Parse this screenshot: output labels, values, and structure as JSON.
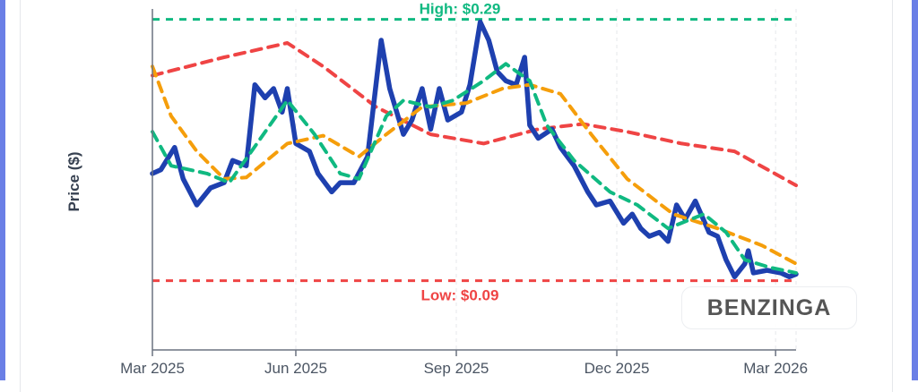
{
  "chart_data": {
    "type": "line",
    "title": "",
    "xlabel": "",
    "ylabel": "Price ($)",
    "x_units": "days since 2025-03-01",
    "xlim": [
      0,
      377
    ],
    "ylim": [
      0.037,
      0.298
    ],
    "x_ticks": [
      {
        "label": "Mar 2025",
        "day": 0
      },
      {
        "label": "Jun 2025",
        "day": 84
      },
      {
        "label": "Sep 2025",
        "day": 178
      },
      {
        "label": "Dec 2025",
        "day": 272
      },
      {
        "label": "Mar 2026",
        "day": 365
      }
    ],
    "grid": "vertical dashed",
    "reference_lines": [
      {
        "name": "high",
        "label": "High: $0.29",
        "value": 0.29,
        "color": "#10b981"
      },
      {
        "name": "low",
        "label": "Low: $0.09",
        "value": 0.09,
        "color": "#ef4444"
      }
    ],
    "series": [
      {
        "name": "price",
        "color": "#1e40af",
        "style": "solid",
        "x": [
          0,
          5,
          13,
          18,
          26,
          34,
          42,
          47,
          55,
          60,
          66,
          71,
          76,
          79,
          84,
          92,
          97,
          105,
          110,
          118,
          126,
          134,
          139,
          147,
          152,
          158,
          163,
          168,
          173,
          181,
          186,
          192,
          197,
          202,
          207,
          213,
          218,
          221,
          226,
          234,
          239,
          247,
          255,
          260,
          268,
          276,
          281,
          286,
          291,
          297,
          302,
          307,
          312,
          318,
          326,
          331,
          336,
          341,
          347,
          349,
          352,
          360,
          368,
          373,
          377
        ],
        "values": [
          0.172,
          0.175,
          0.192,
          0.168,
          0.148,
          0.161,
          0.165,
          0.182,
          0.178,
          0.24,
          0.23,
          0.237,
          0.219,
          0.237,
          0.195,
          0.189,
          0.172,
          0.158,
          0.165,
          0.165,
          0.185,
          0.274,
          0.237,
          0.202,
          0.213,
          0.237,
          0.206,
          0.237,
          0.213,
          0.219,
          0.24,
          0.288,
          0.274,
          0.25,
          0.243,
          0.24,
          0.261,
          0.209,
          0.199,
          0.206,
          0.192,
          0.178,
          0.158,
          0.148,
          0.151,
          0.134,
          0.141,
          0.13,
          0.124,
          0.127,
          0.12,
          0.148,
          0.137,
          0.151,
          0.127,
          0.124,
          0.106,
          0.093,
          0.103,
          0.113,
          0.096,
          0.098,
          0.096,
          0.093,
          0.095
        ]
      },
      {
        "name": "sma-short",
        "color": "#10b981",
        "style": "dashed",
        "x": [
          0,
          11,
          32,
          45,
          58,
          79,
          95,
          110,
          121,
          137,
          147,
          163,
          176,
          194,
          207,
          221,
          231,
          247,
          268,
          284,
          302,
          323,
          336,
          347,
          362,
          377
        ],
        "values": [
          0.204,
          0.178,
          0.172,
          0.165,
          0.189,
          0.228,
          0.202,
          0.172,
          0.168,
          0.216,
          0.228,
          0.223,
          0.228,
          0.243,
          0.256,
          0.243,
          0.209,
          0.182,
          0.158,
          0.148,
          0.13,
          0.141,
          0.127,
          0.106,
          0.1,
          0.096
        ]
      },
      {
        "name": "sma-medium",
        "color": "#f59e0b",
        "style": "dashed",
        "x": [
          0,
          11,
          26,
          42,
          55,
          79,
          100,
          121,
          137,
          158,
          184,
          205,
          221,
          239,
          257,
          278,
          305,
          331,
          357,
          377
        ],
        "values": [
          0.254,
          0.216,
          0.189,
          0.168,
          0.169,
          0.195,
          0.201,
          0.185,
          0.202,
          0.223,
          0.226,
          0.237,
          0.24,
          0.233,
          0.202,
          0.168,
          0.141,
          0.13,
          0.117,
          0.103
        ]
      },
      {
        "name": "sma-long",
        "color": "#ef4444",
        "style": "dashed",
        "x": [
          0,
          42,
          79,
          100,
          131,
          163,
          194,
          226,
          252,
          278,
          310,
          341,
          377
        ],
        "values": [
          0.247,
          0.261,
          0.272,
          0.254,
          0.223,
          0.202,
          0.195,
          0.206,
          0.21,
          0.204,
          0.195,
          0.189,
          0.163
        ]
      }
    ]
  },
  "watermark": "BENZINGA"
}
